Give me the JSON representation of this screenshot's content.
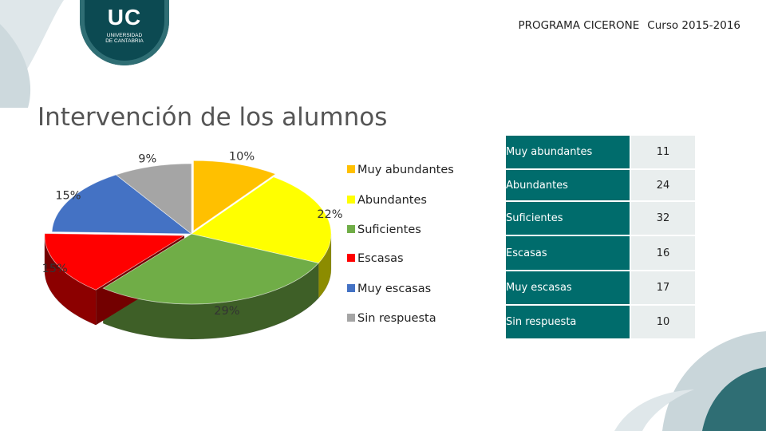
{
  "header": {
    "logo_text": "UC",
    "logo_sub_1": "UNIVERSIDAD",
    "logo_sub_2": "DE CANTABRIA",
    "program": "PROGRAMA CICERONE",
    "course": "Curso 2015-2016"
  },
  "title": "Intervención de los alumnos",
  "chart_data": {
    "type": "pie",
    "style": "3d-exploded",
    "categories": [
      "Muy abundantes",
      "Abundantes",
      "Suficientes",
      "Escasas",
      "Muy escasas",
      "Sin respuesta"
    ],
    "values": [
      11,
      24,
      32,
      16,
      17,
      10
    ],
    "percent_labels": [
      "10%",
      "22%",
      "29%",
      "15%",
      "15%",
      "9%"
    ],
    "colors": [
      "#ffc000",
      "#ffff00",
      "#70ad47",
      "#ff0000",
      "#4472c4",
      "#a5a5a5"
    ],
    "legend_position": "right"
  },
  "table": {
    "rows": [
      {
        "label": "Muy abundantes",
        "value": "11"
      },
      {
        "label": "Abundantes",
        "value": "24"
      },
      {
        "label": "Suficientes",
        "value": "32"
      },
      {
        "label": "Escasas",
        "value": "16"
      },
      {
        "label": "Muy escasas",
        "value": "17"
      },
      {
        "label": "Sin respuesta",
        "value": "10"
      }
    ]
  }
}
